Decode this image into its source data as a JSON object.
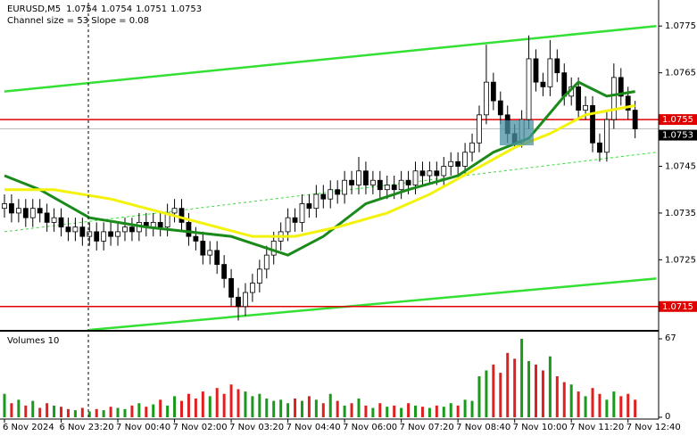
{
  "chart_data": [
    {
      "type": "candlestick",
      "title": "EURUSD,M5",
      "quote": [
        1.0754,
        1.0754,
        1.0751,
        1.0753
      ],
      "annotation": "Channel size = 53 Slope = 0.08",
      "categories": [
        "6 Nov 2024",
        null,
        null,
        null,
        null,
        null,
        null,
        null,
        "6 Nov 23:20",
        null,
        null,
        null,
        null,
        null,
        null,
        null,
        "7 Nov 00:40",
        null,
        null,
        null,
        null,
        null,
        null,
        null,
        "7 Nov 02:00",
        null,
        null,
        null,
        null,
        null,
        null,
        null,
        "7 Nov 03:20",
        null,
        null,
        null,
        null,
        null,
        null,
        null,
        "7 Nov 04:40",
        null,
        null,
        null,
        null,
        null,
        null,
        null,
        "7 Nov 06:00",
        null,
        null,
        null,
        null,
        null,
        null,
        null,
        "7 Nov 07:20",
        null,
        null,
        null,
        null,
        null,
        null,
        null,
        "7 Nov 08:40",
        null,
        null,
        null,
        null,
        null,
        null,
        null,
        "7 Nov 10:00",
        null,
        null,
        null,
        null,
        null,
        null,
        null,
        "7 Nov 11:20",
        null,
        null,
        null,
        null,
        null,
        null,
        null,
        "7 Nov 12:40",
        null
      ],
      "open": [
        1.0736,
        1.0737,
        1.0735,
        1.0736,
        1.0734,
        1.0736,
        1.0735,
        1.0733,
        1.0734,
        1.0732,
        1.0731,
        1.0732,
        1.073,
        1.0731,
        1.0729,
        1.0731,
        1.073,
        1.0731,
        1.0732,
        1.0731,
        1.0733,
        1.0732,
        1.0733,
        1.0732,
        1.0735,
        1.0736,
        1.0733,
        1.073,
        1.0729,
        1.0726,
        1.0727,
        1.0724,
        1.0721,
        1.0717,
        1.0715,
        1.0718,
        1.072,
        1.0723,
        1.0726,
        1.0729,
        1.0731,
        1.0734,
        1.0733,
        1.0737,
        1.0736,
        1.0739,
        1.0738,
        1.074,
        1.0739,
        1.0742,
        1.0741,
        1.0744,
        1.0741,
        1.0742,
        1.074,
        1.0741,
        1.074,
        1.0742,
        1.0741,
        1.0744,
        1.0743,
        1.0744,
        1.0743,
        1.0745,
        1.0746,
        1.0745,
        1.0748,
        1.075,
        1.0756,
        1.0763,
        1.0759,
        1.0756,
        1.0752,
        1.075,
        1.0755,
        1.0768,
        1.0763,
        1.0762,
        1.0768,
        1.0765,
        1.076,
        1.0762,
        1.0757,
        1.0758,
        1.075,
        1.0748,
        1.0755,
        1.0764,
        1.076,
        1.0757
      ],
      "high": [
        1.0739,
        1.0739,
        1.0738,
        1.0738,
        1.0738,
        1.0738,
        1.0737,
        1.0736,
        1.0736,
        1.0734,
        1.0734,
        1.0734,
        1.0733,
        1.0733,
        1.0733,
        1.0733,
        1.0733,
        1.0734,
        1.0734,
        1.0735,
        1.0735,
        1.0735,
        1.0735,
        1.0737,
        1.0738,
        1.0738,
        1.0735,
        1.0732,
        1.0731,
        1.0729,
        1.0729,
        1.0726,
        1.0723,
        1.0719,
        1.072,
        1.0722,
        1.0725,
        1.0728,
        1.0731,
        1.0733,
        1.0736,
        1.0736,
        1.0739,
        1.0739,
        1.0741,
        1.0741,
        1.0742,
        1.0742,
        1.0744,
        1.0744,
        1.0747,
        1.0746,
        1.0744,
        1.0744,
        1.0743,
        1.0743,
        1.0744,
        1.0744,
        1.0746,
        1.0746,
        1.0746,
        1.0746,
        1.0747,
        1.0748,
        1.0748,
        1.075,
        1.0752,
        1.0758,
        1.0771,
        1.0765,
        1.0761,
        1.0758,
        1.0754,
        1.0757,
        1.0773,
        1.077,
        1.0765,
        1.0772,
        1.077,
        1.0767,
        1.0764,
        1.0764,
        1.076,
        1.076,
        1.0752,
        1.0757,
        1.0767,
        1.0766,
        1.0762,
        1.0759
      ],
      "low": [
        1.0734,
        1.0733,
        1.0733,
        1.0732,
        1.0732,
        1.0733,
        1.0731,
        1.0731,
        1.073,
        1.0729,
        1.0729,
        1.0728,
        1.0728,
        1.0727,
        1.0727,
        1.0728,
        1.0728,
        1.0729,
        1.0729,
        1.0729,
        1.073,
        1.073,
        1.073,
        1.073,
        1.0733,
        1.0731,
        1.0728,
        1.0727,
        1.0724,
        1.0724,
        1.0722,
        1.0719,
        1.0715,
        1.0712,
        1.0713,
        1.0716,
        1.0718,
        1.0721,
        1.0724,
        1.0727,
        1.0729,
        1.0731,
        1.0731,
        1.0734,
        1.0734,
        1.0736,
        1.0736,
        1.0737,
        1.0737,
        1.0739,
        1.0739,
        1.0739,
        1.0739,
        1.0738,
        1.0738,
        1.0738,
        1.0738,
        1.0739,
        1.0739,
        1.0741,
        1.0741,
        1.0741,
        1.0741,
        1.0743,
        1.0743,
        1.0743,
        1.0746,
        1.0748,
        1.0754,
        1.0757,
        1.0754,
        1.075,
        1.0749,
        1.0749,
        1.0753,
        1.0761,
        1.076,
        1.076,
        1.0763,
        1.0758,
        1.0758,
        1.0755,
        1.0755,
        1.0748,
        1.0746,
        1.0746,
        1.0753,
        1.0758,
        1.0755,
        1.0751
      ],
      "close": [
        1.0737,
        1.0735,
        1.0736,
        1.0734,
        1.0736,
        1.0735,
        1.0733,
        1.0734,
        1.0732,
        1.0731,
        1.0732,
        1.073,
        1.0731,
        1.0729,
        1.0731,
        1.073,
        1.0731,
        1.0732,
        1.0731,
        1.0733,
        1.0732,
        1.0733,
        1.0732,
        1.0735,
        1.0736,
        1.0733,
        1.073,
        1.0729,
        1.0726,
        1.0727,
        1.0724,
        1.0721,
        1.0717,
        1.0715,
        1.0718,
        1.072,
        1.0723,
        1.0726,
        1.0729,
        1.0731,
        1.0734,
        1.0733,
        1.0737,
        1.0736,
        1.0739,
        1.0738,
        1.074,
        1.0739,
        1.0742,
        1.0741,
        1.0744,
        1.0741,
        1.0742,
        1.074,
        1.0741,
        1.074,
        1.0742,
        1.0741,
        1.0744,
        1.0743,
        1.0744,
        1.0743,
        1.0745,
        1.0746,
        1.0745,
        1.0748,
        1.075,
        1.0756,
        1.0763,
        1.0759,
        1.0756,
        1.0752,
        1.075,
        1.0755,
        1.0768,
        1.0763,
        1.0762,
        1.0768,
        1.0765,
        1.076,
        1.0762,
        1.0757,
        1.0758,
        1.075,
        1.0748,
        1.0755,
        1.0764,
        1.076,
        1.0757,
        1.0753
      ],
      "color": "#000000",
      "lines": [
        {
          "color": "#1a8a1a",
          "width": 3,
          "x": [
            0,
            5,
            12,
            20,
            32,
            40,
            45,
            51,
            57,
            64,
            69,
            74,
            79,
            81,
            85,
            89
          ],
          "values": [
            1.0743,
            1.074,
            1.0734,
            1.0732,
            1.073,
            1.0726,
            1.073,
            1.0737,
            1.074,
            1.0743,
            1.0748,
            1.0751,
            1.076,
            1.0763,
            1.076,
            1.0761
          ]
        },
        {
          "color": "#f2f20a",
          "width": 3,
          "x": [
            0,
            7,
            15,
            25,
            35,
            41,
            47,
            54,
            60,
            66,
            72,
            77,
            82,
            89
          ],
          "values": [
            1.074,
            1.074,
            1.0738,
            1.0734,
            1.073,
            1.073,
            1.0732,
            1.0735,
            1.0739,
            1.0744,
            1.0749,
            1.0752,
            1.0756,
            1.0758
          ]
        }
      ],
      "trendlines": [
        {
          "color": "#33e033",
          "dash": false,
          "x": [
            0,
            92
          ],
          "values": [
            1.0761,
            1.0775
          ]
        },
        {
          "color": "#33e033",
          "dash": false,
          "x": [
            12,
            92
          ],
          "values": [
            1.071,
            1.0721
          ]
        },
        {
          "color": "#33e033",
          "dash": true,
          "x": [
            0,
            92
          ],
          "values": [
            1.0731,
            1.0748
          ]
        }
      ],
      "levels": [
        {
          "value": 1.0755,
          "color": "#e00000"
        },
        {
          "value": 1.0715,
          "color": "#e00000"
        }
      ],
      "last_price": 1.0753,
      "ylim": [
        1.071,
        1.078
      ],
      "yticks": [
        1.0775,
        1.0765,
        1.0745,
        1.0735,
        1.0725
      ]
    },
    {
      "type": "bar",
      "title": "Volumes 10",
      "up_color": "#1a9a1a",
      "down_color": "#e02020",
      "values": [
        20,
        12,
        15,
        10,
        14,
        8,
        12,
        10,
        9,
        7,
        6,
        8,
        5,
        7,
        6,
        9,
        8,
        7,
        10,
        12,
        9,
        11,
        15,
        10,
        18,
        14,
        20,
        16,
        22,
        18,
        25,
        20,
        28,
        24,
        22,
        18,
        20,
        16,
        14,
        15,
        12,
        16,
        14,
        18,
        15,
        12,
        20,
        14,
        10,
        12,
        16,
        10,
        8,
        12,
        9,
        10,
        8,
        12,
        10,
        9,
        8,
        10,
        9,
        12,
        10,
        15,
        14,
        35,
        40,
        45,
        38,
        55,
        50,
        67,
        48,
        45,
        40,
        52,
        35,
        30,
        28,
        22,
        18,
        25,
        20,
        15,
        22,
        18,
        20,
        15
      ],
      "ylim": [
        0,
        67
      ],
      "yticks": [
        67,
        0
      ]
    }
  ]
}
